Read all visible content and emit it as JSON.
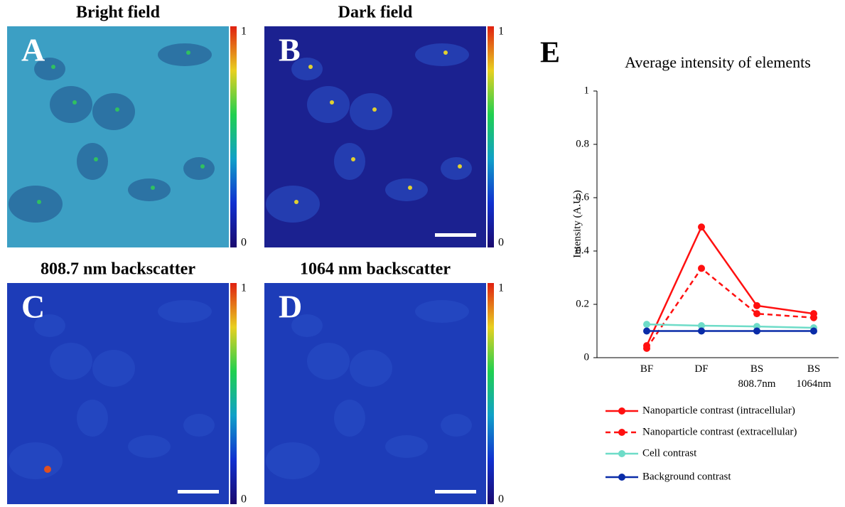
{
  "panels": [
    {
      "letter": "A",
      "title": "Bright field",
      "colorbar_max": 1,
      "colorbar_min": 0
    },
    {
      "letter": "B",
      "title": "Dark field",
      "colorbar_max": 1,
      "colorbar_min": 0
    },
    {
      "letter": "C",
      "title": "808.7 nm backscatter",
      "colorbar_max": 1,
      "colorbar_min": 0
    },
    {
      "letter": "D",
      "title": "1064 nm backscatter",
      "colorbar_max": 1,
      "colorbar_min": 0
    }
  ],
  "panel_e": {
    "letter": "E"
  },
  "chart_data": {
    "type": "line",
    "title": "Average intensity of elements",
    "y_label": "Intensity (A.U.)",
    "categories": [
      "BF",
      "DF",
      "BS 808.7nm",
      "BS 1064nm"
    ],
    "series": [
      {
        "name": "Nanoparticle contrast (intracellular)",
        "color": "#ff1010",
        "dashed": false,
        "values": [
          0.045,
          0.49,
          0.195,
          0.165
        ]
      },
      {
        "name": "Nanoparticle contrast (extracellular)",
        "color": "#ff1010",
        "dashed": true,
        "values": [
          0.035,
          0.335,
          0.165,
          0.15
        ]
      },
      {
        "name": "Cell contrast",
        "color": "#6edcc8",
        "dashed": false,
        "values": [
          0.125,
          0.12,
          0.117,
          0.112
        ]
      },
      {
        "name": "Background contrast",
        "color": "#0a2ca8",
        "dashed": false,
        "values": [
          0.1,
          0.1,
          0.1,
          0.1
        ]
      }
    ],
    "ylim": [
      0,
      1
    ],
    "yticks": [
      0,
      0.2,
      0.4,
      0.6,
      0.8,
      1
    ],
    "grid": false,
    "legend": "bottom"
  }
}
